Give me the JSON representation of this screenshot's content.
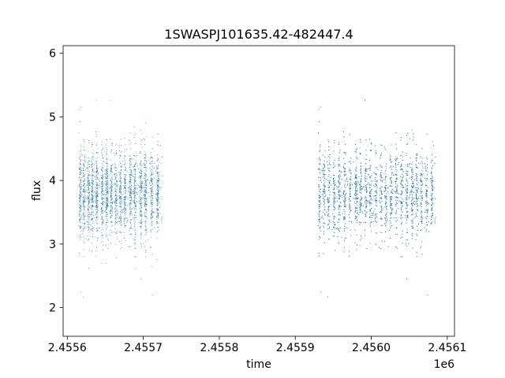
{
  "chart_data": {
    "type": "scatter",
    "title": "1SWASPJ101635.42-482447.4",
    "xlabel": "time",
    "ylabel": "flux",
    "x_offset_label": "1e6",
    "xlim": [
      2455594.5,
      2456109.5
    ],
    "ylim": [
      1.55,
      6.12
    ],
    "x_ticks": [
      2455600,
      2455700,
      2455800,
      2455900,
      2456000,
      2456100
    ],
    "x_tick_labels": [
      "2.4556",
      "2.4557",
      "2.4558",
      "2.4559",
      "2.4560",
      "2.4561"
    ],
    "y_ticks": [
      2,
      3,
      4,
      5,
      6
    ],
    "y_tick_labels": [
      "2",
      "3",
      "4",
      "5",
      "6"
    ],
    "grid": false,
    "marker_color": "#1f77b4",
    "series": [
      {
        "x_range": [
          2455615,
          2455725
        ],
        "y_center": 3.8,
        "y_range": [
          1.75,
          5.95
        ],
        "approx_points": 3500,
        "dense_nights": [
          2455617,
          2455622,
          2455628,
          2455633,
          2455639,
          2455646,
          2455652,
          2455658,
          2455664,
          2455670,
          2455676,
          2455683,
          2455689,
          2455697,
          2455703,
          2455711,
          2455719
        ]
      },
      {
        "x_range": [
          2455930,
          2456085
        ],
        "y_center": 3.8,
        "y_range": [
          1.8,
          5.7
        ],
        "approx_points": 6500,
        "dense_nights": [
          2455932,
          2455938,
          2455944,
          2455951,
          2455958,
          2455965,
          2455972,
          2455980,
          2455986,
          2455993,
          2455999,
          2456006,
          2456013,
          2456019,
          2456026,
          2456033,
          2456040,
          2456047,
          2456054,
          2456060,
          2456066,
          2456073,
          2456080
        ]
      }
    ]
  }
}
